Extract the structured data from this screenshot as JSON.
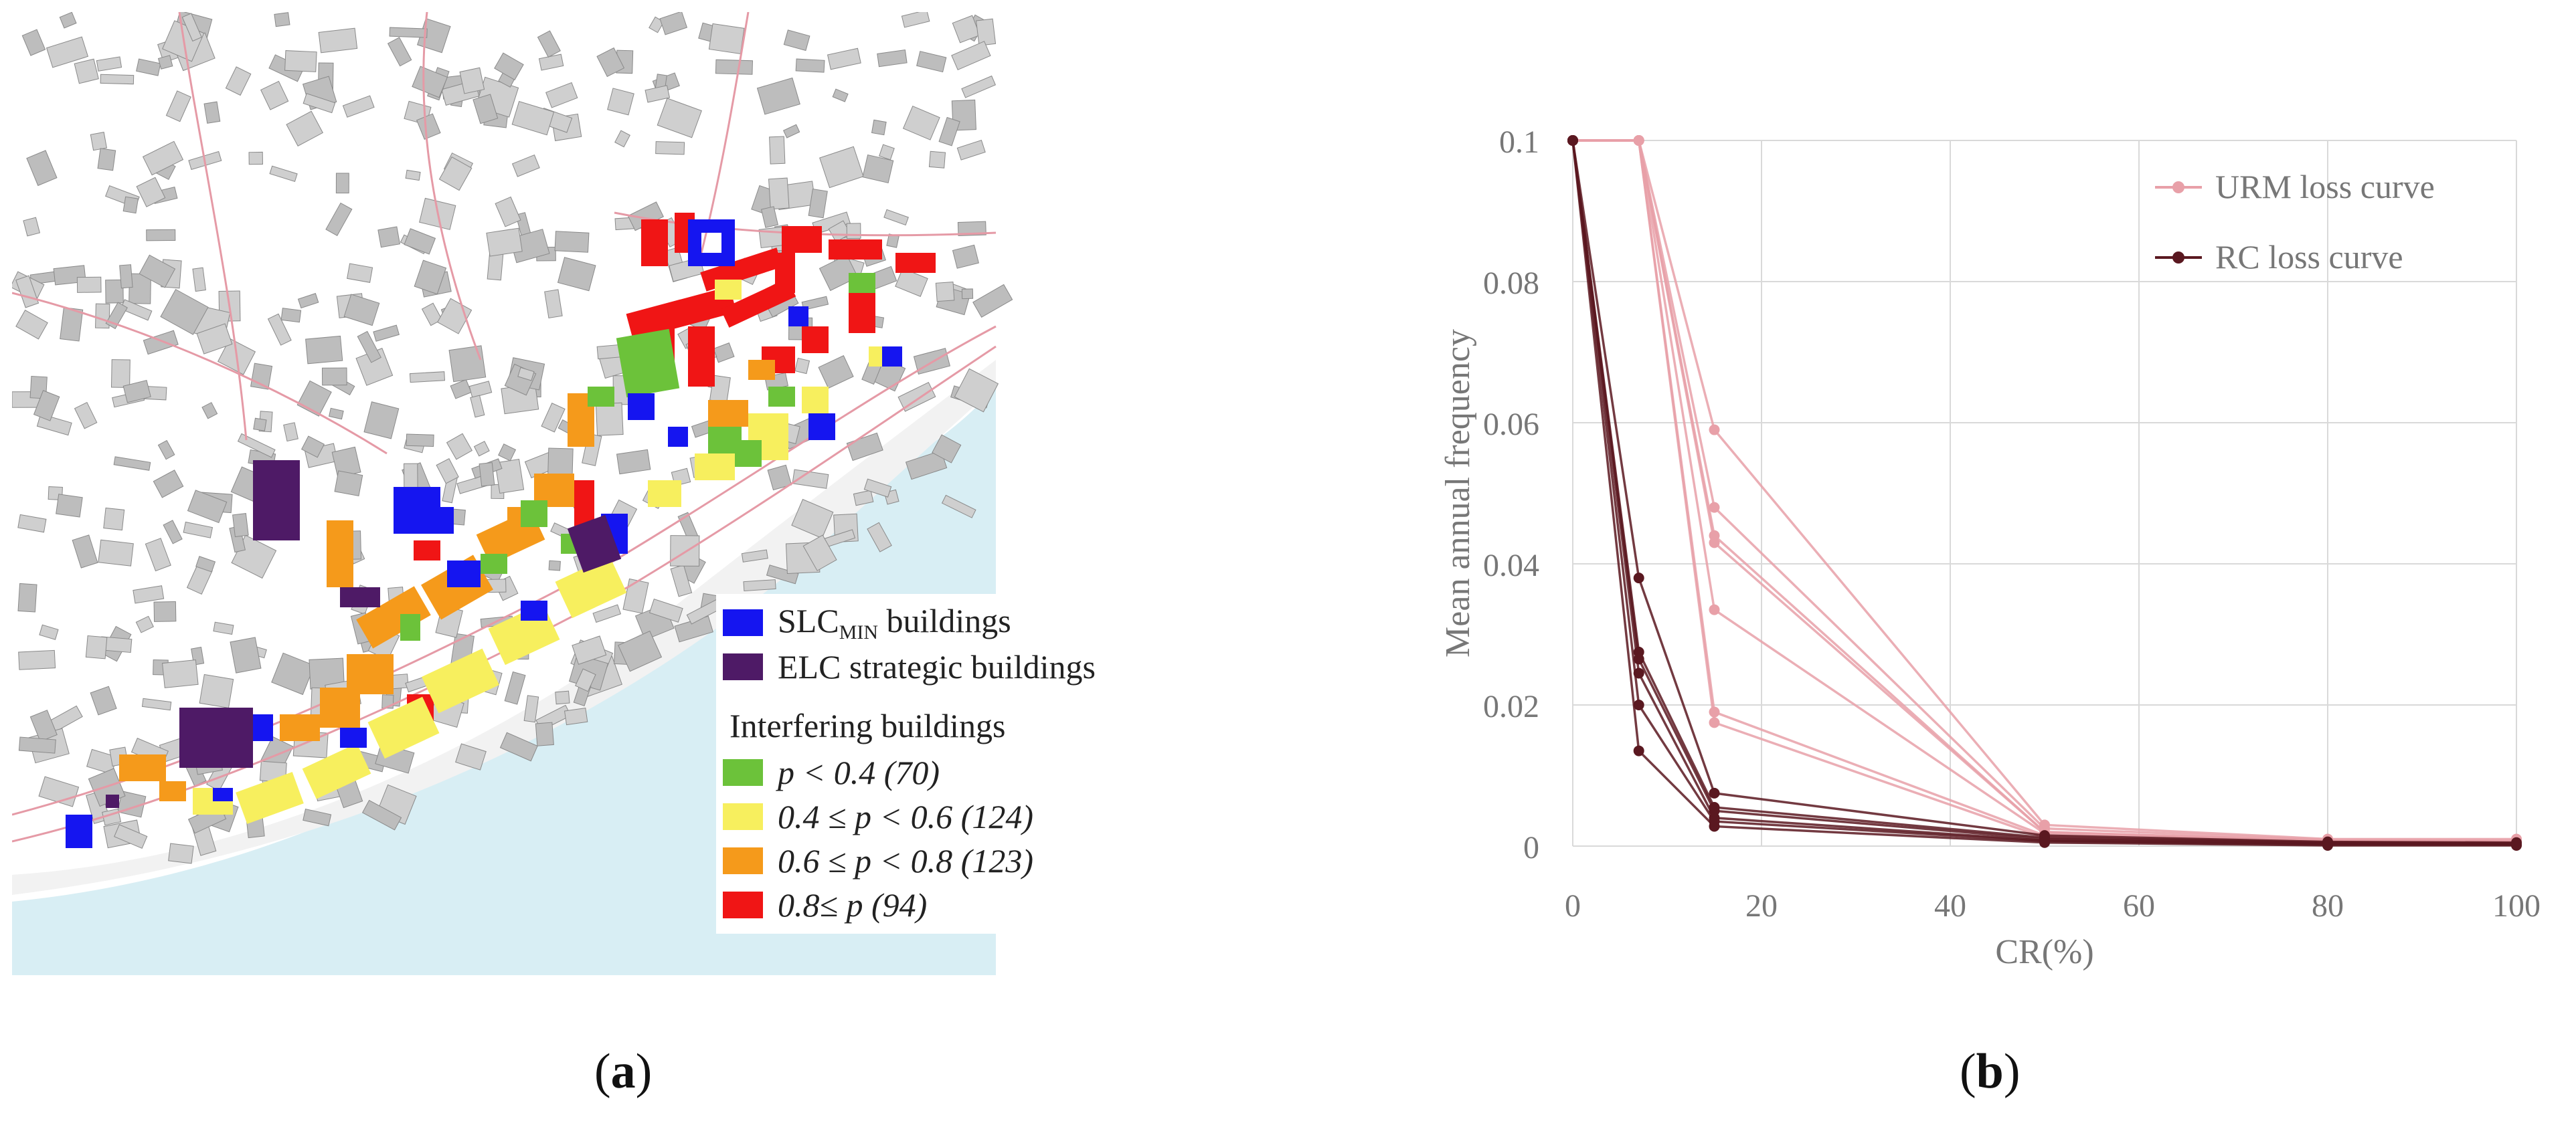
{
  "panel_a": {
    "label": "a",
    "legend": {
      "slc_label_main": "SLC",
      "slc_label_sub": "MIN",
      "slc_label_rest": " buildings",
      "elc_label": "ELC strategic buildings",
      "interfering_title": "Interfering buildings",
      "classes": [
        {
          "label": "p < 0.4 (70)",
          "color": "#6cc23a"
        },
        {
          "label": "0.4 ≤ p < 0.6 (124)",
          "color": "#f7ef5e"
        },
        {
          "label": "0.6 ≤ p < 0.8 (123)",
          "color": "#f59a1b"
        },
        {
          "label": "0.8≤ p (94)",
          "color": "#f01515"
        }
      ],
      "slc_color": "#1515f0",
      "elc_color": "#4e1a66"
    }
  },
  "panel_b": {
    "label": "b"
  },
  "chart_data": {
    "type": "line",
    "title": "",
    "xlabel": "CR(%)",
    "ylabel": "Mean annual frequency",
    "xlim": [
      0,
      100
    ],
    "ylim": [
      0,
      0.1
    ],
    "xticks": [
      0,
      20,
      40,
      60,
      80,
      100
    ],
    "yticks": [
      0,
      0.02,
      0.04,
      0.06,
      0.08,
      0.1
    ],
    "ytick_labels": [
      "0",
      "0.02",
      "0.04",
      "0.06",
      "0.08",
      "0.1"
    ],
    "xtick_labels": [
      "0",
      "20",
      "40",
      "60",
      "80",
      "100"
    ],
    "grid": true,
    "legend_position": "top-right",
    "legend": [
      {
        "name": "URM loss curve",
        "color": "#e8a0a8"
      },
      {
        "name": "RC loss curve",
        "color": "#5a1820"
      }
    ],
    "series": [
      {
        "name": "URM loss curve",
        "group": "URM",
        "x": [
          0,
          7,
          15,
          50,
          80,
          100
        ],
        "y": [
          0.1,
          0.1,
          0.059,
          0.003,
          0.001,
          0.001
        ]
      },
      {
        "name": "URM loss curve",
        "group": "URM",
        "x": [
          0,
          7,
          15,
          50,
          80,
          100
        ],
        "y": [
          0.1,
          0.1,
          0.048,
          0.0025,
          0.0009,
          0.0008
        ]
      },
      {
        "name": "URM loss curve",
        "group": "URM",
        "x": [
          0,
          7,
          15,
          50,
          80,
          100
        ],
        "y": [
          0.1,
          0.1,
          0.044,
          0.002,
          0.0008,
          0.0007
        ]
      },
      {
        "name": "URM loss curve",
        "group": "URM",
        "x": [
          0,
          7,
          15,
          50,
          80,
          100
        ],
        "y": [
          0.1,
          0.1,
          0.043,
          0.002,
          0.0007,
          0.0006
        ]
      },
      {
        "name": "URM loss curve",
        "group": "URM",
        "x": [
          0,
          7,
          15,
          50,
          80,
          100
        ],
        "y": [
          0.1,
          0.1,
          0.0335,
          0.0018,
          0.0006,
          0.0005
        ]
      },
      {
        "name": "URM loss curve",
        "group": "URM",
        "x": [
          0,
          7,
          15,
          50,
          80,
          100
        ],
        "y": [
          0.1,
          0.1,
          0.019,
          0.0015,
          0.0005,
          0.0004
        ]
      },
      {
        "name": "URM loss curve",
        "group": "URM",
        "x": [
          0,
          7,
          15,
          50,
          80,
          100
        ],
        "y": [
          0.1,
          0.1,
          0.0175,
          0.0012,
          0.0004,
          0.0003
        ]
      },
      {
        "name": "RC loss curve",
        "group": "RC",
        "x": [
          0,
          7,
          15,
          50,
          80,
          100
        ],
        "y": [
          0.1,
          0.038,
          0.0075,
          0.0015,
          0.0006,
          0.0005
        ]
      },
      {
        "name": "RC loss curve",
        "group": "RC",
        "x": [
          0,
          7,
          15,
          50,
          80,
          100
        ],
        "y": [
          0.1,
          0.0275,
          0.0055,
          0.0012,
          0.0005,
          0.0004
        ]
      },
      {
        "name": "RC loss curve",
        "group": "RC",
        "x": [
          0,
          7,
          15,
          50,
          80,
          100
        ],
        "y": [
          0.1,
          0.0265,
          0.005,
          0.001,
          0.0004,
          0.0003
        ]
      },
      {
        "name": "RC loss curve",
        "group": "RC",
        "x": [
          0,
          7,
          15,
          50,
          80,
          100
        ],
        "y": [
          0.1,
          0.0245,
          0.004,
          0.0008,
          0.0003,
          0.0002
        ]
      },
      {
        "name": "RC loss curve",
        "group": "RC",
        "x": [
          0,
          7,
          15,
          50,
          80,
          100
        ],
        "y": [
          0.1,
          0.02,
          0.0035,
          0.0007,
          0.0002,
          0.0002
        ]
      },
      {
        "name": "RC loss curve",
        "group": "RC",
        "x": [
          0,
          7,
          15,
          50,
          80,
          100
        ],
        "y": [
          0.1,
          0.0135,
          0.0028,
          0.0005,
          0.0001,
          0.0001
        ]
      }
    ]
  }
}
